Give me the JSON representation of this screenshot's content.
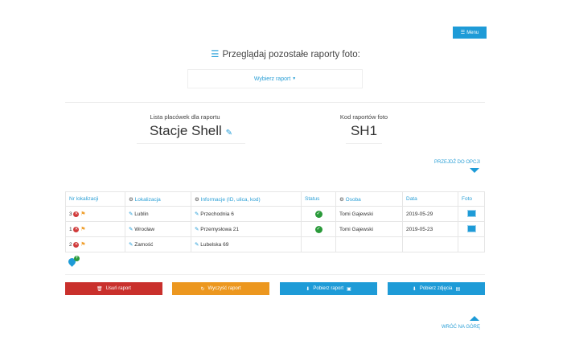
{
  "header": {
    "menu_label": "Menu",
    "title": "Przeglądaj pozostałe raporty foto:",
    "select_label": "Wybierz raport"
  },
  "info": {
    "list_label": "Lista placówek dla raportu",
    "list_value": "Stacje Shell",
    "code_label": "Kod raportów foto",
    "code_value": "SH1",
    "goto_options": "PRZEJDŹ DO OPCJI"
  },
  "table": {
    "headers": [
      "Nr lokalizacji",
      "Lokalizacja",
      "Informacje (ID, ulica, kod)",
      "Status",
      "Osoba",
      "Data",
      "Foto"
    ],
    "rows": [
      {
        "nr": "3",
        "location": "Lublin",
        "info": "Przechodnia 6",
        "status": "ok",
        "person": "Tomi Gajewski",
        "date": "2019-05-29",
        "photo": true
      },
      {
        "nr": "1",
        "location": "Wrocław",
        "info": "Przemysłowa 21",
        "status": "ok",
        "person": "Tomi Gajewski",
        "date": "2019-05-23",
        "photo": true
      },
      {
        "nr": "2",
        "location": "Zamość",
        "info": "Lubelska 69",
        "status": "",
        "person": "",
        "date": "",
        "photo": false
      }
    ]
  },
  "buttons": {
    "delete": "Usuń raport",
    "clear": "Wyczyść raport",
    "download_report": "Pobierz raport",
    "download_photos": "Pobierz zdjęcia"
  },
  "colors": {
    "accent": "#1e9bd7",
    "danger": "#c9302c",
    "warning": "#ec971f"
  },
  "footer": {
    "back_top": "WRÓĆ NA GÓRĘ"
  }
}
